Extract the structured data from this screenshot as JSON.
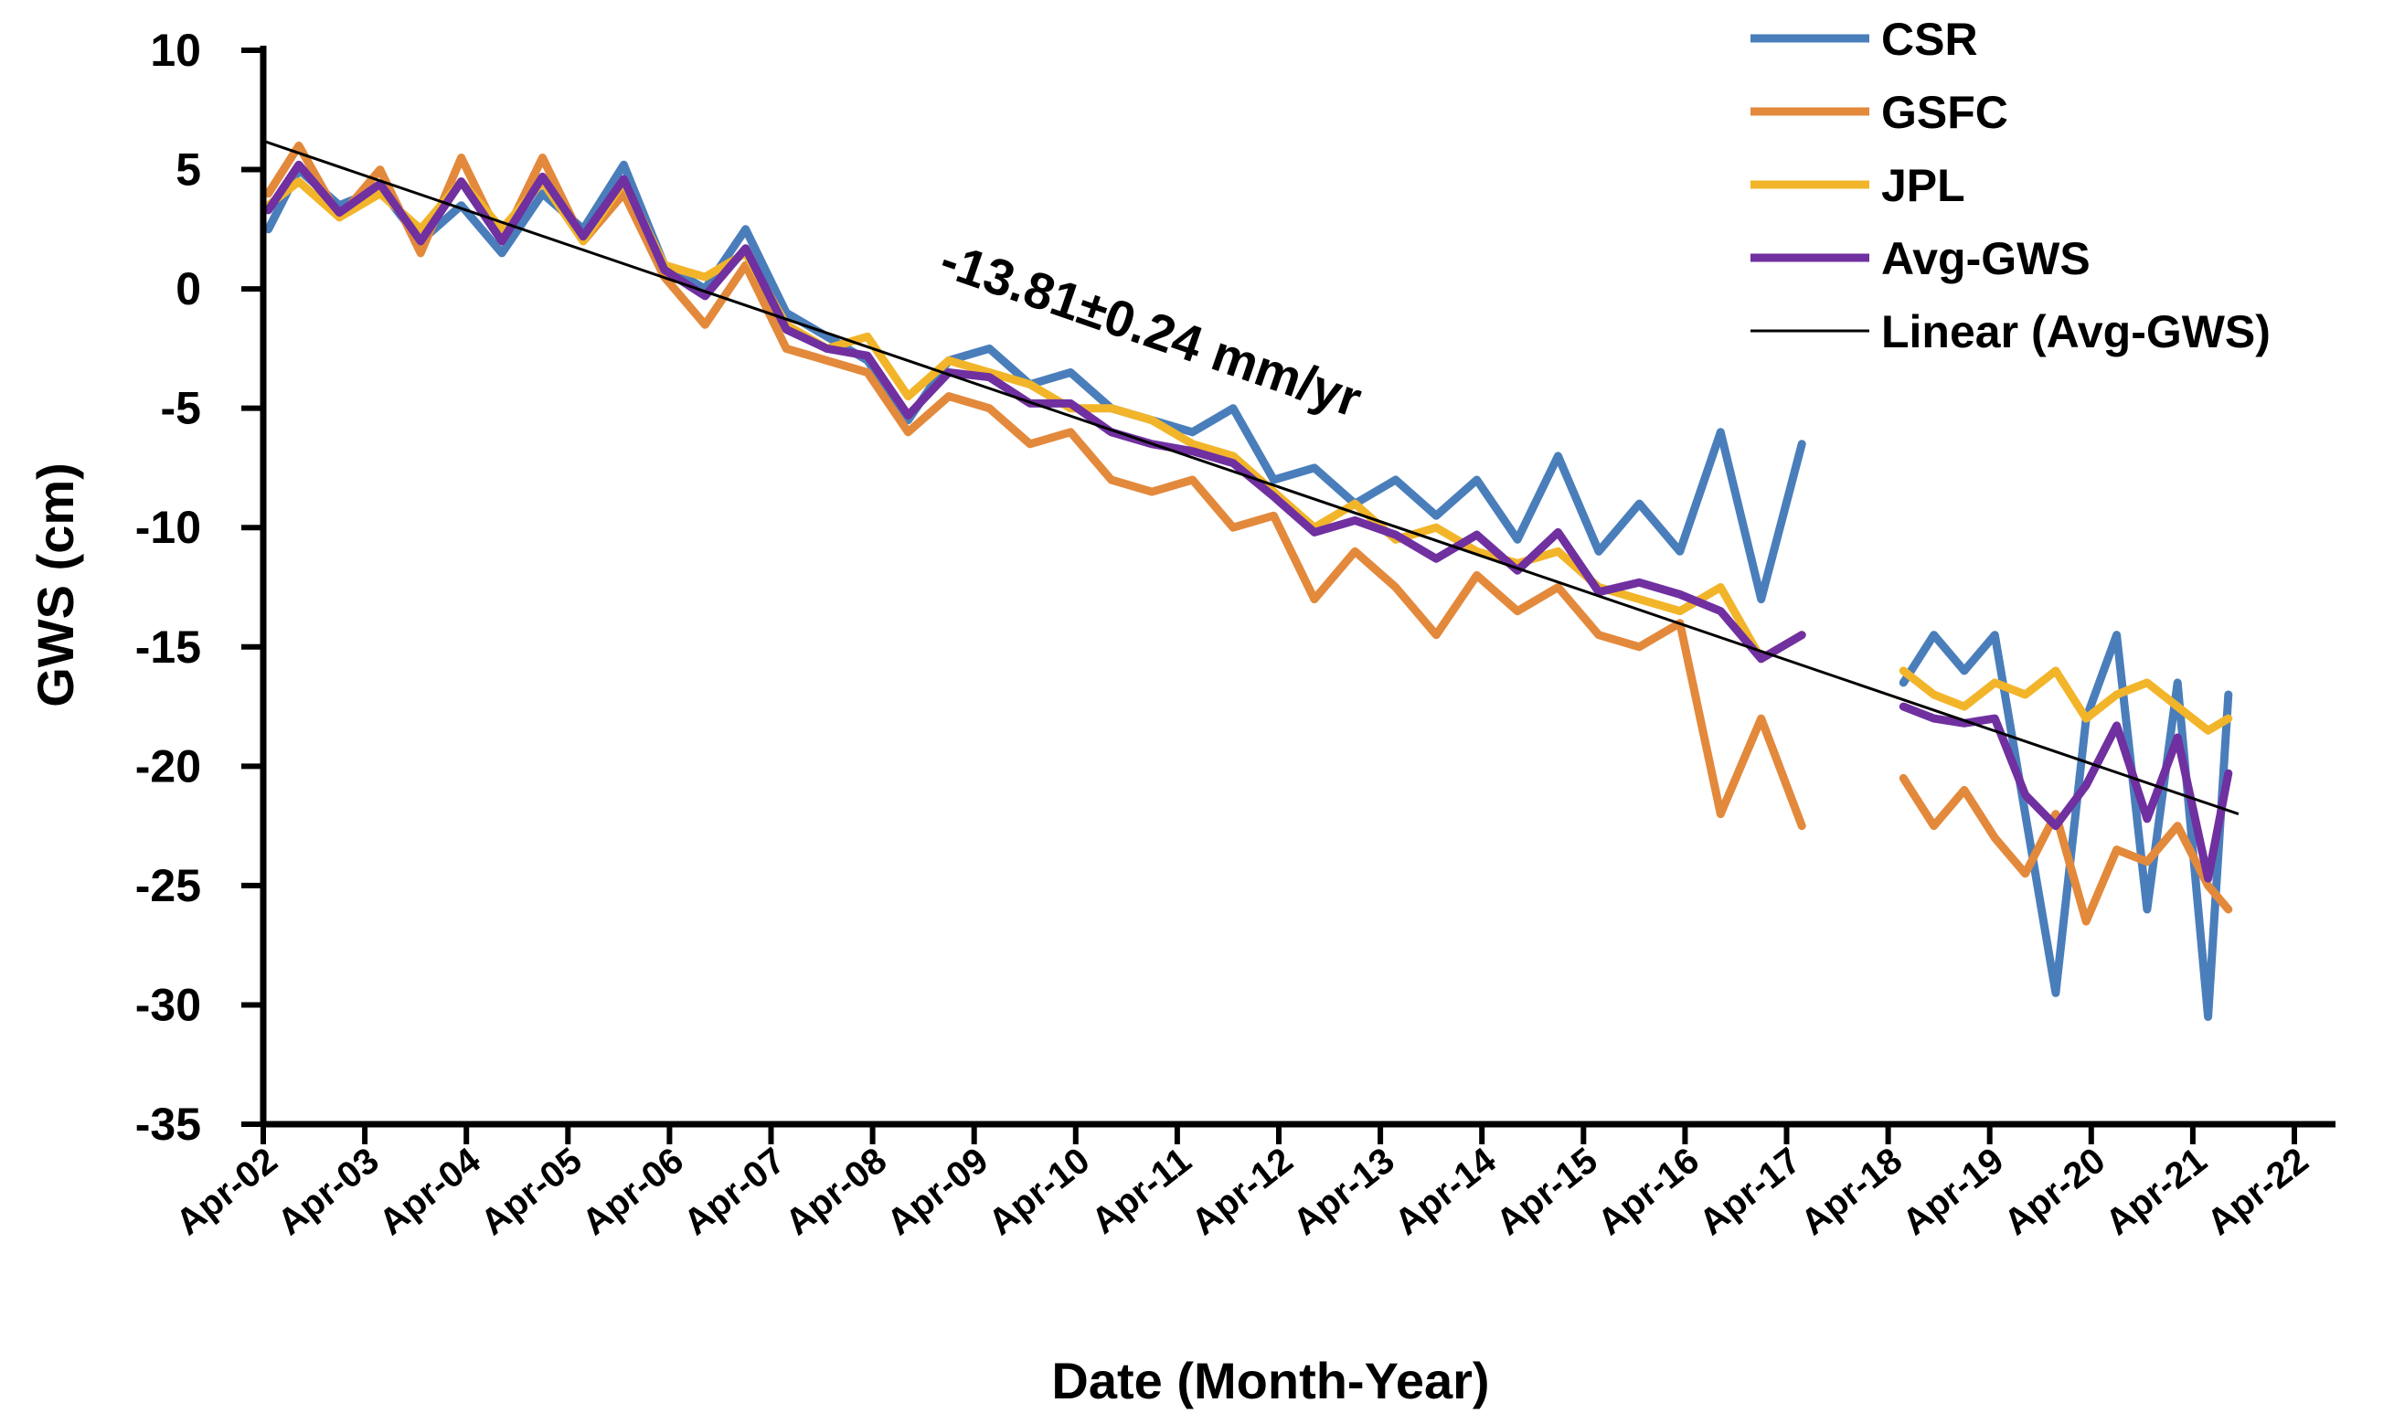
{
  "chart_data": {
    "type": "line",
    "title": "",
    "xlabel": "Date (Month-Year)",
    "ylabel": "GWS (cm)",
    "ylim": [
      -35,
      10
    ],
    "yticks": [
      10,
      5,
      0,
      -5,
      -10,
      -15,
      -20,
      -25,
      -30,
      -35
    ],
    "ytick_labels": [
      "10",
      "5",
      "0",
      "-5",
      "-10",
      "-15",
      "-20",
      "-25",
      "-30",
      "-35"
    ],
    "xlim": [
      2002.25,
      2022.75
    ],
    "xtick_labels": [
      "Apr-02",
      "Apr-03",
      "Apr-04",
      "Apr-05",
      "Apr-06",
      "Apr-07",
      "Apr-08",
      "Apr-09",
      "Apr-10",
      "Apr-11",
      "Apr-12",
      "Apr-13",
      "Apr-14",
      "Apr-15",
      "Apr-16",
      "Apr-17",
      "Apr-18",
      "Apr-19",
      "Apr-20",
      "Apr-21",
      "Apr-22"
    ],
    "xtick_values": [
      2002.25,
      2003.25,
      2004.25,
      2005.25,
      2006.25,
      2007.25,
      2008.25,
      2009.25,
      2010.25,
      2011.25,
      2012.25,
      2013.25,
      2014.25,
      2015.25,
      2016.25,
      2017.25,
      2018.25,
      2019.25,
      2020.25,
      2021.25,
      2022.25
    ],
    "grid": false,
    "legend_position": "top-right",
    "annotation": "-13.81±0.24 mm/yr",
    "trend": {
      "name": "Linear (Avg-GWS)",
      "color": "#000000",
      "start": [
        2002.25,
        6.2
      ],
      "end": [
        2021.7,
        -22.0
      ]
    },
    "data_gap": [
      2017.6,
      2018.35
    ],
    "series": [
      {
        "name": "CSR",
        "color": "#4a7ebb",
        "x": [
          2002.3,
          2002.6,
          2003.0,
          2003.4,
          2003.8,
          2004.2,
          2004.6,
          2005.0,
          2005.4,
          2005.8,
          2006.2,
          2006.6,
          2007.0,
          2007.4,
          2007.8,
          2008.2,
          2008.6,
          2009.0,
          2009.4,
          2009.8,
          2010.2,
          2010.6,
          2011.0,
          2011.4,
          2011.8,
          2012.2,
          2012.6,
          2013.0,
          2013.4,
          2013.8,
          2014.2,
          2014.6,
          2015.0,
          2015.4,
          2015.8,
          2016.2,
          2016.6,
          2017.0,
          2017.4,
          2018.4,
          2018.7,
          2019.0,
          2019.3,
          2019.6,
          2019.9,
          2020.2,
          2020.5,
          2020.8,
          2021.1,
          2021.4,
          2021.6
        ],
        "values": [
          2.5,
          5.0,
          3.5,
          4.2,
          2.0,
          3.5,
          1.5,
          4.0,
          2.5,
          5.2,
          1.0,
          0.0,
          2.5,
          -1.0,
          -2.0,
          -3.0,
          -5.5,
          -3.0,
          -2.5,
          -4.0,
          -3.5,
          -5.0,
          -5.5,
          -6.0,
          -5.0,
          -8.0,
          -7.5,
          -9.0,
          -8.0,
          -9.5,
          -8.0,
          -10.5,
          -7.0,
          -11.0,
          -9.0,
          -11.0,
          -6.0,
          -13.0,
          -6.5,
          -16.5,
          -14.5,
          -16.0,
          -14.5,
          -22.0,
          -29.5,
          -18.0,
          -14.5,
          -26.0,
          -16.5,
          -30.5,
          -17.0
        ]
      },
      {
        "name": "GSFC",
        "color": "#e3893c",
        "x": [
          2002.3,
          2002.6,
          2003.0,
          2003.4,
          2003.8,
          2004.2,
          2004.6,
          2005.0,
          2005.4,
          2005.8,
          2006.2,
          2006.6,
          2007.0,
          2007.4,
          2007.8,
          2008.2,
          2008.6,
          2009.0,
          2009.4,
          2009.8,
          2010.2,
          2010.6,
          2011.0,
          2011.4,
          2011.8,
          2012.2,
          2012.6,
          2013.0,
          2013.4,
          2013.8,
          2014.2,
          2014.6,
          2015.0,
          2015.4,
          2015.8,
          2016.2,
          2016.6,
          2017.0,
          2017.4,
          2018.4,
          2018.7,
          2019.0,
          2019.3,
          2019.6,
          2019.9,
          2020.2,
          2020.5,
          2020.8,
          2021.1,
          2021.4,
          2021.6
        ],
        "values": [
          4.0,
          6.0,
          3.0,
          5.0,
          1.5,
          5.5,
          2.0,
          5.5,
          2.0,
          4.0,
          0.5,
          -1.5,
          1.0,
          -2.5,
          -3.0,
          -3.5,
          -6.0,
          -4.5,
          -5.0,
          -6.5,
          -6.0,
          -8.0,
          -8.5,
          -8.0,
          -10.0,
          -9.5,
          -13.0,
          -11.0,
          -12.5,
          -14.5,
          -12.0,
          -13.5,
          -12.5,
          -14.5,
          -15.0,
          -14.0,
          -22.0,
          -18.0,
          -22.5,
          -20.5,
          -22.5,
          -21.0,
          -23.0,
          -24.5,
          -22.0,
          -26.5,
          -23.5,
          -24.0,
          -22.5,
          -25.0,
          -26.0
        ]
      },
      {
        "name": "JPL",
        "color": "#f2b52a",
        "x": [
          2002.3,
          2002.6,
          2003.0,
          2003.4,
          2003.8,
          2004.2,
          2004.6,
          2005.0,
          2005.4,
          2005.8,
          2006.2,
          2006.6,
          2007.0,
          2007.4,
          2007.8,
          2008.2,
          2008.6,
          2009.0,
          2009.4,
          2009.8,
          2010.2,
          2010.6,
          2011.0,
          2011.4,
          2011.8,
          2012.2,
          2012.6,
          2013.0,
          2013.4,
          2013.8,
          2014.2,
          2014.6,
          2015.0,
          2015.4,
          2015.8,
          2016.2,
          2016.6,
          2017.0,
          2017.4,
          2018.4,
          2018.7,
          2019.0,
          2019.3,
          2019.6,
          2019.9,
          2020.2,
          2020.5,
          2020.8,
          2021.1,
          2021.4,
          2021.6
        ],
        "values": [
          3.5,
          4.5,
          3.0,
          4.0,
          2.5,
          4.5,
          2.5,
          4.5,
          2.0,
          4.5,
          1.0,
          0.5,
          1.5,
          -1.5,
          -2.5,
          -2.0,
          -4.5,
          -3.0,
          -3.5,
          -4.0,
          -5.0,
          -5.0,
          -5.5,
          -6.5,
          -7.0,
          -8.5,
          -10.0,
          -9.0,
          -10.5,
          -10.0,
          -11.0,
          -11.5,
          -11.0,
          -12.5,
          -13.0,
          -13.5,
          -12.5,
          -15.5,
          -14.5,
          -16.0,
          -17.0,
          -17.5,
          -16.5,
          -17.0,
          -16.0,
          -18.0,
          -17.0,
          -16.5,
          -17.5,
          -18.5,
          -18.0
        ]
      },
      {
        "name": "Avg-GWS",
        "color": "#7030a0",
        "x": [
          2002.3,
          2002.6,
          2003.0,
          2003.4,
          2003.8,
          2004.2,
          2004.6,
          2005.0,
          2005.4,
          2005.8,
          2006.2,
          2006.6,
          2007.0,
          2007.4,
          2007.8,
          2008.2,
          2008.6,
          2009.0,
          2009.4,
          2009.8,
          2010.2,
          2010.6,
          2011.0,
          2011.4,
          2011.8,
          2012.2,
          2012.6,
          2013.0,
          2013.4,
          2013.8,
          2014.2,
          2014.6,
          2015.0,
          2015.4,
          2015.8,
          2016.2,
          2016.6,
          2017.0,
          2017.4,
          2018.4,
          2018.7,
          2019.0,
          2019.3,
          2019.6,
          2019.9,
          2020.2,
          2020.5,
          2020.8,
          2021.1,
          2021.4,
          2021.6
        ],
        "values": [
          3.3,
          5.2,
          3.2,
          4.4,
          2.0,
          4.5,
          2.0,
          4.7,
          2.2,
          4.6,
          0.8,
          -0.3,
          1.7,
          -1.7,
          -2.5,
          -2.8,
          -5.3,
          -3.5,
          -3.7,
          -4.8,
          -4.8,
          -6.0,
          -6.5,
          -6.8,
          -7.3,
          -8.7,
          -10.2,
          -9.7,
          -10.3,
          -11.3,
          -10.3,
          -11.8,
          -10.2,
          -12.7,
          -12.3,
          -12.8,
          -13.5,
          -15.5,
          -14.5,
          -17.5,
          -18.0,
          -18.2,
          -18.0,
          -21.2,
          -22.5,
          -20.8,
          -18.3,
          -22.2,
          -18.8,
          -24.7,
          -20.3
        ]
      }
    ]
  }
}
